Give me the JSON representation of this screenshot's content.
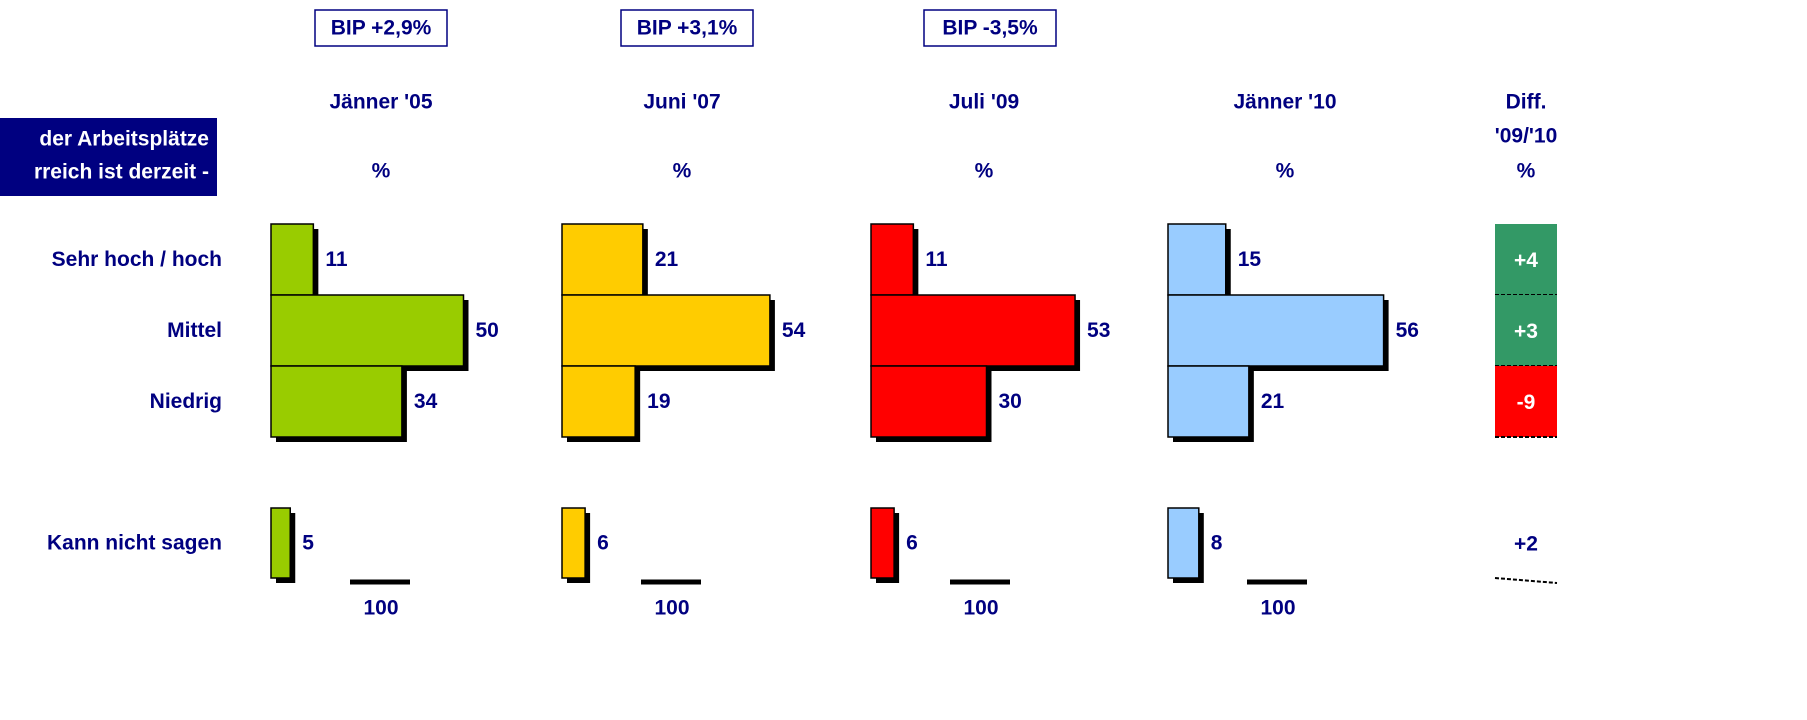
{
  "question": [
    "der Arbeitsplätze",
    "rreich ist derzeit -"
  ],
  "categories": [
    "Sehr hoch / hoch",
    "Mittel",
    "Niedrig",
    "Kann nicht sagen"
  ],
  "chart_data": [
    {
      "type": "bar",
      "annotation": "BIP +2,9%",
      "title": "Jänner '05",
      "subtitle": "%",
      "values": [
        11,
        50,
        34,
        5
      ],
      "color": "#99cc00",
      "scale_label": 100
    },
    {
      "type": "bar",
      "annotation": "BIP +3,1%",
      "title": "Juni '07",
      "subtitle": "%",
      "values": [
        21,
        54,
        19,
        6
      ],
      "color": "#ffcc00",
      "scale_label": 100
    },
    {
      "type": "bar",
      "annotation": "BIP -3,5%",
      "title": "Juli '09",
      "subtitle": "%",
      "values": [
        11,
        53,
        30,
        6
      ],
      "color": "#ff0000",
      "scale_label": 100
    },
    {
      "type": "bar",
      "title": "Jänner '10",
      "subtitle": "%",
      "values": [
        15,
        56,
        21,
        8
      ],
      "color": "#99ccff",
      "scale_label": 100
    }
  ],
  "diff": {
    "title": "Diff.",
    "subtitle": "'09/'10",
    "unit": "%",
    "values": [
      4,
      3,
      -9,
      2
    ],
    "value_labels": [
      "+4",
      "+3",
      "-9",
      "+2"
    ],
    "colors": [
      "#339966",
      "#339966",
      "#ff0000",
      null
    ]
  }
}
